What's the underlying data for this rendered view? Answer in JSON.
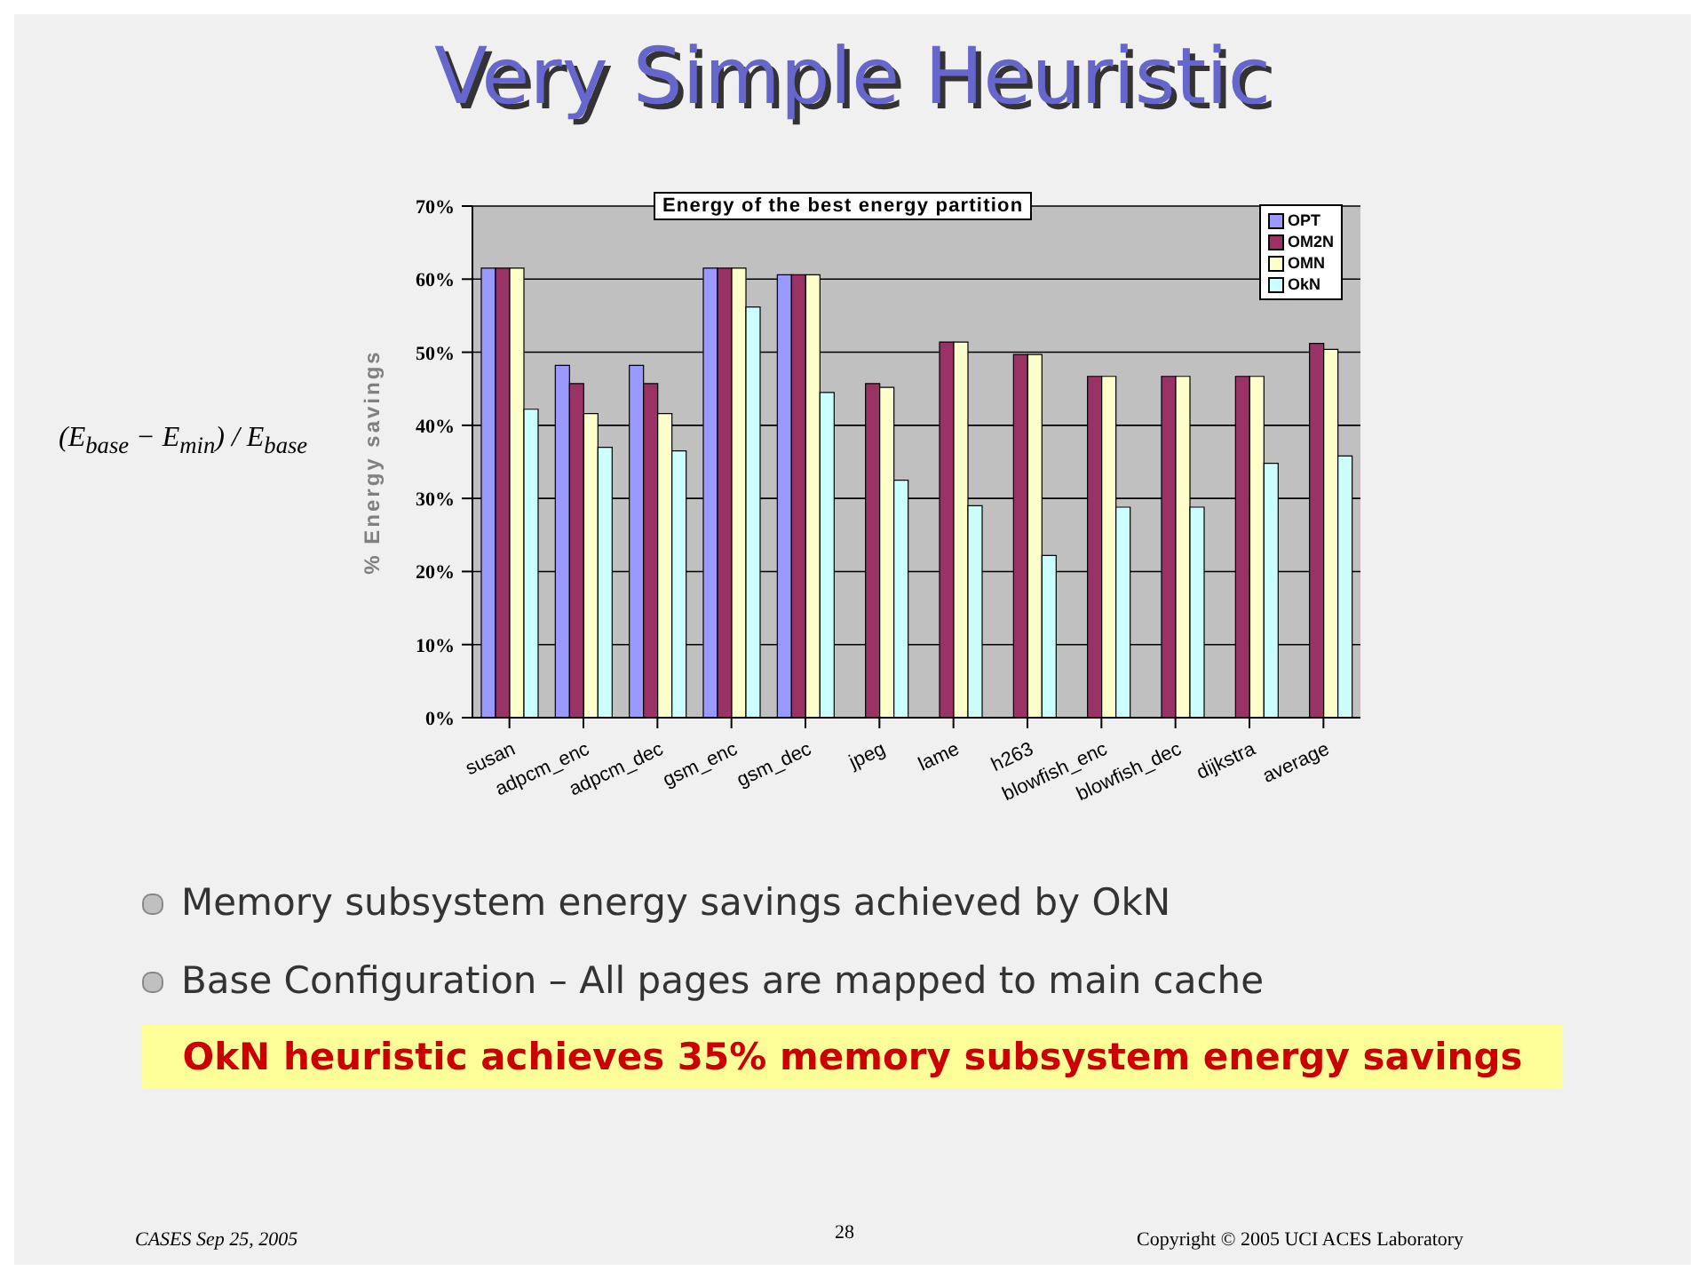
{
  "chart_data": {
    "type": "bar",
    "title": "Very Simple Heuristic",
    "subtitle": "Energy of the best energy partition",
    "ylabel": "% Energy savings",
    "categories": [
      "susan",
      "adpcm_enc",
      "adpcm_dec",
      "gsm_enc",
      "gsm_dec",
      "jpeg",
      "lame",
      "h263",
      "blowfish_enc",
      "blowfish_dec",
      "dijkstra",
      "average"
    ],
    "series": [
      {
        "name": "OPT",
        "color": "#9999ff",
        "values": [
          61.5,
          48.2,
          48.2,
          61.5,
          60.6,
          null,
          null,
          null,
          null,
          null,
          null,
          null
        ]
      },
      {
        "name": "OM2N",
        "color": "#993366",
        "values": [
          61.5,
          45.7,
          45.7,
          61.5,
          60.6,
          45.7,
          51.4,
          49.7,
          46.7,
          46.7,
          46.7,
          51.2
        ]
      },
      {
        "name": "OMN",
        "color": "#ffffcc",
        "values": [
          61.5,
          41.6,
          41.6,
          61.5,
          60.6,
          45.2,
          51.4,
          49.7,
          46.7,
          46.7,
          46.7,
          50.4
        ]
      },
      {
        "name": "OkN",
        "color": "#ccffff",
        "values": [
          42.2,
          37,
          36.5,
          56.2,
          44.5,
          32.5,
          29,
          22.2,
          28.8,
          28.8,
          34.8,
          35.8
        ]
      }
    ],
    "ylim": [
      0,
      70
    ],
    "yticks": [
      {
        "value": 0,
        "label": "0%"
      },
      {
        "value": 10,
        "label": "10%"
      },
      {
        "value": 20,
        "label": "20%"
      },
      {
        "value": 30,
        "label": "30%"
      },
      {
        "value": 40,
        "label": "40%"
      },
      {
        "value": 50,
        "label": "50%"
      },
      {
        "value": 60,
        "label": "60%"
      },
      {
        "value": 70,
        "label": "70%"
      }
    ],
    "grid": "y",
    "legend": "top right",
    "annotations": [
      "(E$_{base}$ − E$_{min}$) / E$_{base}$",
      "Memory subsystem energy savings achieved by OkN",
      "Base Configuration – All pages are mapped to main cache",
      "OkN heuristic achieves 35% memory subsystem energy savings",
      "CASES Sep 25, 2005",
      "28",
      "Copyright © 2005 UCI ACES Laboratory"
    ]
  }
}
